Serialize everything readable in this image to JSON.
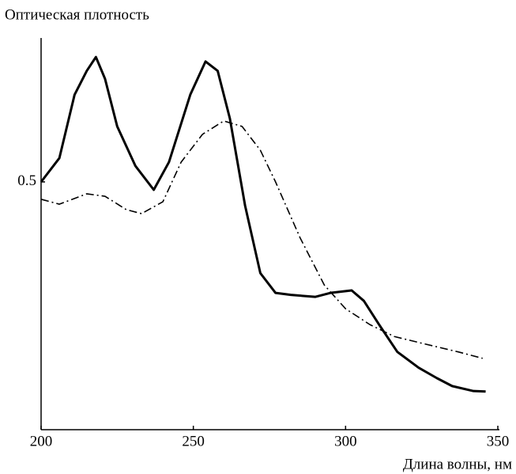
{
  "chart_data": {
    "type": "line",
    "y_label": "Оптическая плотность",
    "x_label": "Длина волны, нм",
    "xlim": [
      200,
      350
    ],
    "xticks": [
      200,
      250,
      300,
      350
    ],
    "ylim": [
      0,
      0.8
    ],
    "yticks": [
      0.5
    ],
    "series": [
      {
        "color": "#000000",
        "dash": "solid",
        "x": [
          200,
          206,
          211,
          215,
          218,
          221,
          225,
          231,
          237,
          242,
          249,
          254,
          258,
          262,
          267,
          272,
          277,
          282,
          290,
          295,
          302,
          306,
          311,
          317,
          324,
          330,
          335,
          342,
          346
        ],
        "values": [
          0.5,
          0.548,
          0.676,
          0.724,
          0.752,
          0.708,
          0.612,
          0.532,
          0.484,
          0.54,
          0.676,
          0.743,
          0.724,
          0.628,
          0.452,
          0.316,
          0.276,
          0.272,
          0.268,
          0.276,
          0.281,
          0.26,
          0.212,
          0.157,
          0.125,
          0.104,
          0.088,
          0.078,
          0.077
        ]
      },
      {
        "color": "#000000",
        "dash": "dashdot",
        "x": [
          200,
          206,
          215,
          221,
          228,
          233,
          240,
          246,
          253,
          260,
          266,
          272,
          277,
          285,
          293,
          300,
          308,
          316,
          326,
          337,
          345
        ],
        "values": [
          0.465,
          0.455,
          0.476,
          0.471,
          0.444,
          0.436,
          0.46,
          0.54,
          0.596,
          0.623,
          0.612,
          0.564,
          0.5,
          0.388,
          0.292,
          0.244,
          0.212,
          0.188,
          0.173,
          0.157,
          0.144
        ]
      }
    ]
  }
}
